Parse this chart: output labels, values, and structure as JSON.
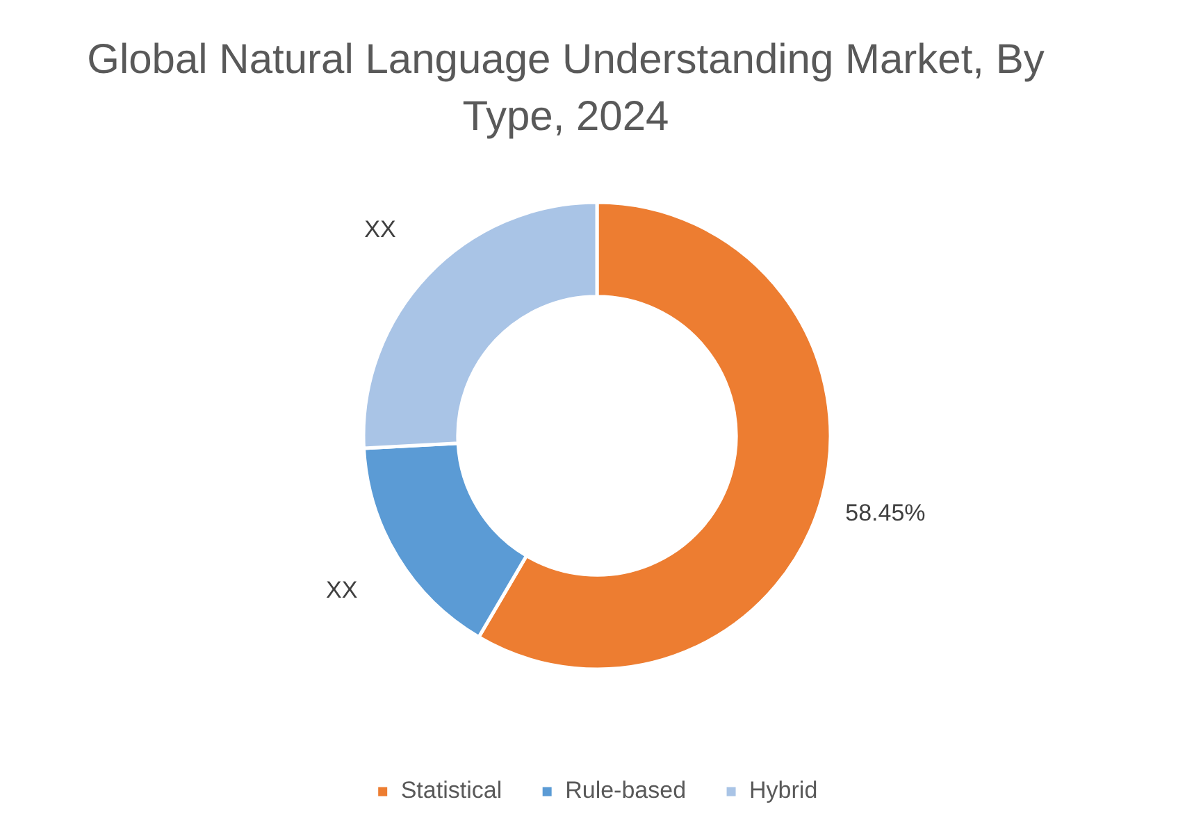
{
  "chart_data": {
    "type": "donut",
    "title": "Global Natural Language Understanding Market, By Type, 2024",
    "categories": [
      "Statistical",
      "Rule-based",
      "Hybrid"
    ],
    "values": [
      58.45,
      15.7,
      25.85
    ],
    "colors": [
      "#ed7d31",
      "#5b9bd5",
      "#a9c4e6"
    ],
    "value_labels": [
      "58.45%",
      "XX",
      "XX"
    ],
    "legend": "bottom"
  }
}
